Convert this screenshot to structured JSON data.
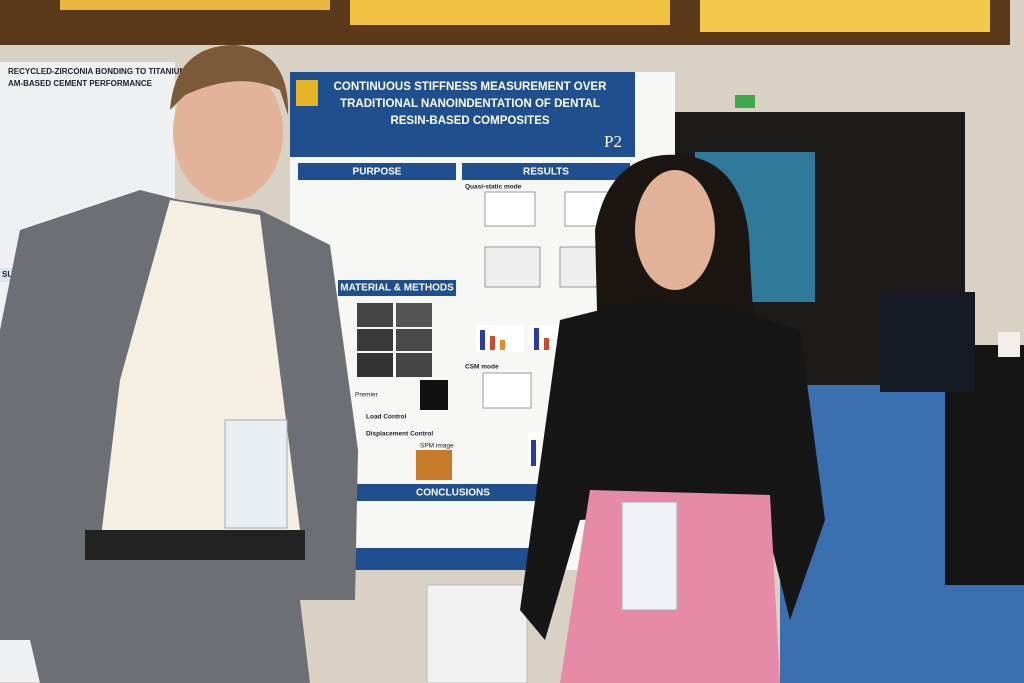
{
  "main_poster": {
    "title_lines": [
      "CONTINUOUS STIFFNESS MEASUREMENT OVER",
      "TRADITIONAL NANOINDENTATION OF DENTAL",
      "RESIN-BASED COMPOSITES"
    ],
    "code": "P2",
    "sections": [
      "PURPOSE",
      "RESULTS",
      "MATERIAL & METHODS",
      "CONCLUSIONS"
    ],
    "labels": [
      "Quasi-static mode",
      "CSM mode",
      "Premier",
      "Load Control",
      "Displacement Control",
      "SPM image"
    ]
  },
  "left_poster": {
    "title_lines": [
      "RECYCLED-ZIRCONIA BONDING TO TITANIUM:",
      "AM-BASED CEMENT PERFORMANCE"
    ],
    "sections": [
      "SUBSTRATE"
    ]
  }
}
